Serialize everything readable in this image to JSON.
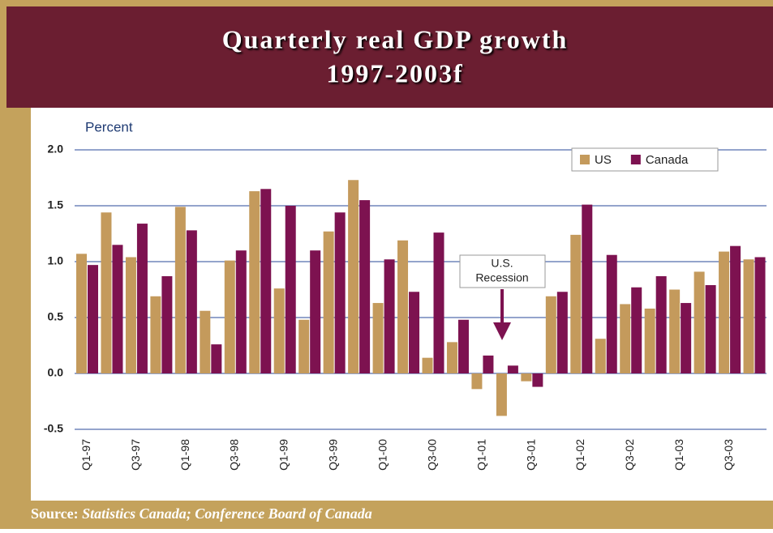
{
  "chart_data": {
    "type": "bar",
    "title": [
      "Quarterly real GDP growth",
      "1997-2003f"
    ],
    "y_label": "Percent",
    "categories": [
      "Q1-97",
      null,
      "Q3-97",
      null,
      "Q1-98",
      null,
      "Q3-98",
      null,
      "Q1-99",
      null,
      "Q3-99",
      null,
      "Q1-00",
      null,
      "Q3-00",
      null,
      "Q1-01",
      null,
      "Q3-01",
      null,
      "Q1-02",
      null,
      "Q3-02",
      null,
      "Q1-03",
      null,
      "Q3-03",
      null
    ],
    "series": [
      {
        "name": "US",
        "color": "#c49a5c",
        "values": [
          1.07,
          1.44,
          1.04,
          0.69,
          1.49,
          0.56,
          1.01,
          1.63,
          0.76,
          0.48,
          1.27,
          1.73,
          0.63,
          1.19,
          0.14,
          0.28,
          -0.14,
          -0.38,
          -0.07,
          0.69,
          1.24,
          0.31,
          0.62,
          0.58,
          0.75,
          0.91,
          1.09,
          1.02
        ]
      },
      {
        "name": "Canada",
        "color": "#7d1250",
        "values": [
          0.97,
          1.15,
          1.34,
          0.87,
          1.28,
          0.26,
          1.1,
          1.65,
          1.5,
          1.1,
          1.44,
          1.55,
          1.02,
          0.73,
          1.26,
          0.48,
          0.16,
          0.07,
          -0.12,
          0.73,
          1.51,
          1.06,
          0.77,
          0.87,
          0.63,
          0.79,
          1.14,
          1.04
        ]
      }
    ],
    "ylim": [
      -0.5,
      2.0
    ],
    "yticks": [
      {
        "value": 2,
        "label": "2.0"
      },
      {
        "value": 1.5,
        "label": "1.5"
      },
      {
        "value": 1,
        "label": "1.0"
      },
      {
        "value": 0.5,
        "label": "0.5"
      },
      {
        "value": 0,
        "label": "0.0"
      },
      {
        "value": -0.5,
        "label": "-0.5"
      }
    ],
    "grid": true,
    "legend": "top-right",
    "annotation": [
      "U.S.",
      "Recession"
    ],
    "source_label": "Source:",
    "source_text": "Statistics Canada; Conference Board of Canada"
  }
}
